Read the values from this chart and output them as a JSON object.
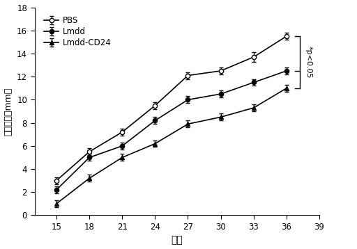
{
  "x": [
    15,
    18,
    21,
    24,
    27,
    30,
    33,
    36
  ],
  "PBS_y": [
    3.0,
    5.5,
    7.2,
    9.5,
    12.1,
    12.5,
    13.7,
    15.5
  ],
  "PBS_err": [
    0.3,
    0.3,
    0.3,
    0.3,
    0.3,
    0.3,
    0.4,
    0.3
  ],
  "Lmdd_y": [
    2.2,
    5.0,
    6.0,
    8.2,
    10.0,
    10.5,
    11.5,
    12.5
  ],
  "Lmdd_err": [
    0.3,
    0.3,
    0.3,
    0.3,
    0.3,
    0.3,
    0.3,
    0.3
  ],
  "LmddCD24_y": [
    1.0,
    3.2,
    5.0,
    6.2,
    7.9,
    8.5,
    9.3,
    11.0
  ],
  "LmddCD24_err": [
    0.3,
    0.3,
    0.3,
    0.3,
    0.3,
    0.3,
    0.3,
    0.3
  ],
  "xlabel": "天数",
  "ylabel": "肿瘤直径（mm）",
  "ylim": [
    0.0,
    18.0
  ],
  "yticks": [
    0.0,
    2.0,
    4.0,
    6.0,
    8.0,
    10.0,
    12.0,
    14.0,
    16.0,
    18.0
  ],
  "xlim": [
    13,
    39
  ],
  "xticks": [
    15,
    18,
    21,
    24,
    27,
    30,
    33,
    36,
    39
  ],
  "legend_labels": [
    "PBS",
    "Lmdd",
    "Lmdd-CD24"
  ],
  "annotation_text": "*p<0.05",
  "figsize": [
    5.12,
    3.58
  ],
  "dpi": 100
}
